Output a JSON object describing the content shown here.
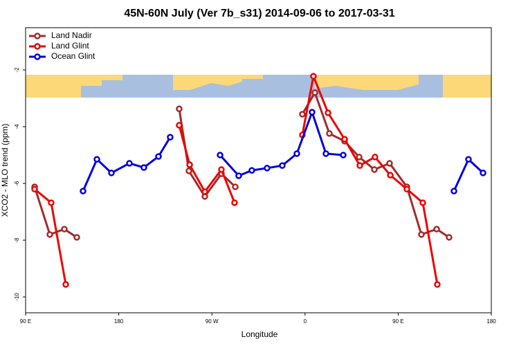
{
  "chart_data": {
    "type": "line",
    "title": "45N-60N July (Ver 7b_s31)   2014-09-06 to 2017-03-31",
    "xlabel": "Longitude",
    "ylabel": "XCO2 - MLO trend (ppm)",
    "xlim": [
      90,
      540
    ],
    "ylim": [
      -10.56,
      -0.51
    ],
    "xticks": [
      {
        "value": 90,
        "label": "90 E"
      },
      {
        "value": 180,
        "label": "180"
      },
      {
        "value": 270,
        "label": "90 W"
      },
      {
        "value": 360,
        "label": "0"
      },
      {
        "value": 450,
        "label": "90 E"
      },
      {
        "value": 540,
        "label": "180"
      }
    ],
    "yticks": [
      -2,
      -4,
      -6,
      -8,
      -10
    ],
    "legend": "top-left",
    "series": [
      {
        "name": "Land Nadir",
        "color": "#a52a2a",
        "x": [
          98.7,
          113.4,
          127.4,
          139.5,
          null,
          238.4,
          247.8,
          263.2,
          279.2,
          292.6,
          null,
          357.4,
          369.5,
          383.5,
          398.2,
          412.3,
          427.0,
          441.7,
          458.4,
          472.4,
          487.2,
          499.2
        ],
        "values": [
          -6.12,
          -7.8,
          -7.61,
          -7.9,
          null,
          -3.37,
          -5.56,
          -6.46,
          -5.66,
          -6.12,
          null,
          -3.56,
          -2.8,
          -4.24,
          -4.51,
          -5.07,
          -5.51,
          -5.29,
          -6.12,
          -7.8,
          -7.61,
          -7.9
        ]
      },
      {
        "name": "Land Glint",
        "color": "#ee0000",
        "x": [
          98.7,
          114.7,
          128.8,
          null,
          238.4,
          248.5,
          263.2,
          279.2,
          291.9,
          null,
          357.4,
          368.1,
          382.2,
          398.2,
          412.9,
          427.6,
          442.4,
          458.4,
          473.8,
          487.8
        ],
        "values": [
          -6.2,
          -6.68,
          -9.56,
          null,
          -3.95,
          -5.34,
          -6.29,
          -5.51,
          -6.68,
          null,
          -4.29,
          -2.22,
          -3.51,
          -4.44,
          -5.37,
          -5.07,
          -5.71,
          -6.2,
          -6.68,
          -9.56
        ]
      },
      {
        "name": "Ocean Glint",
        "color": "#0000dd",
        "x": [
          145.5,
          158.9,
          172.9,
          190.3,
          204.3,
          218.4,
          229.7,
          null,
          277.9,
          295.9,
          308.6,
          323.3,
          338.0,
          352.1,
          366.8,
          380.2,
          396.9,
          null,
          503.9,
          517.9,
          532.0
        ],
        "values": [
          -6.27,
          -5.15,
          -5.63,
          -5.29,
          -5.44,
          -5.05,
          -4.37,
          null,
          -5.0,
          -5.73,
          -5.54,
          -5.46,
          -5.37,
          -4.95,
          -3.49,
          -4.95,
          -5.0,
          null,
          -6.27,
          -5.15,
          -5.63
        ]
      }
    ]
  }
}
